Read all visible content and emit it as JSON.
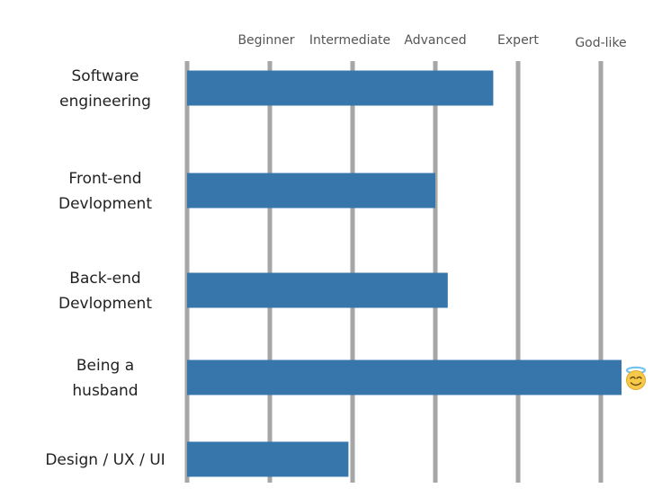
{
  "chart_data": {
    "type": "bar",
    "orientation": "horizontal",
    "title": "",
    "xlabel": "",
    "ylabel": "",
    "x_ticks": [
      "Beginner",
      "Intermediate",
      "Advanced",
      "Expert",
      "God-like"
    ],
    "x_tick_values": [
      1,
      2,
      3,
      4,
      5
    ],
    "xlim": [
      0,
      5
    ],
    "grid": true,
    "bar_color": "#3776ab",
    "grid_color": "#a6a6a6",
    "categories": [
      [
        "Software",
        "engineering"
      ],
      [
        "Front-end",
        "Devlopment"
      ],
      [
        "Back-end",
        "Devlopment"
      ],
      [
        "Being a",
        "husband"
      ],
      [
        "Design / UX / UI"
      ]
    ],
    "values": [
      3.7,
      3.0,
      3.15,
      5.25,
      1.95
    ],
    "annotations": [
      {
        "category_index": 3,
        "icon": "smiling-face-with-halo-icon",
        "text": "😇"
      }
    ]
  }
}
